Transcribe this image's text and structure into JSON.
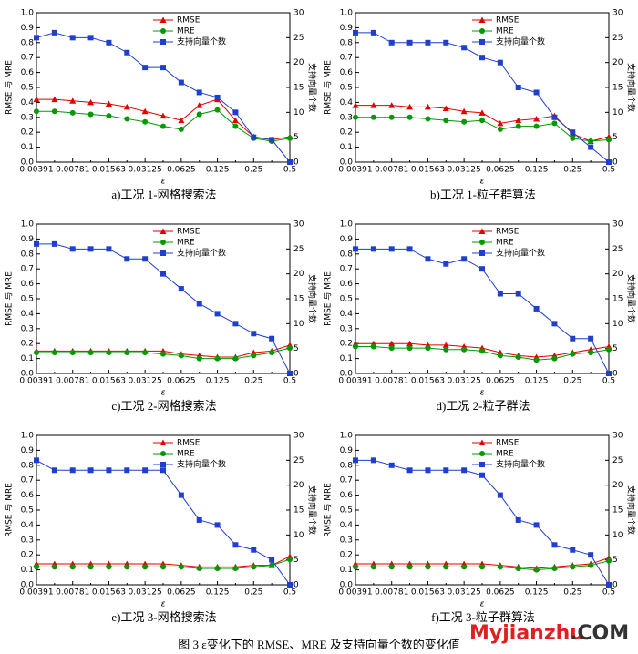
{
  "chart_data": [
    {
      "type": "line",
      "title": "a)工况 1-网格搜索法",
      "xlabel": "ε",
      "ylabel": "RMSE 与 MRE",
      "y2label": "支持向量个数",
      "categories": [
        "0.00391",
        null,
        "0.00781",
        null,
        "0.01563",
        null,
        "0.03125",
        null,
        "0.0625",
        null,
        "0.125",
        null,
        "0.25",
        null,
        "0.5"
      ],
      "ylim": [
        0,
        1
      ],
      "yticks": [
        {
          "value": 0,
          "label": "0.0"
        },
        0.1,
        0.2,
        0.3,
        0.4,
        0.5,
        0.6,
        0.7,
        0.8,
        0.9,
        {
          "value": 1,
          "label": "1.0"
        }
      ],
      "y2lim": [
        0,
        30
      ],
      "y2ticks": [
        0,
        5,
        10,
        15,
        20,
        25,
        30
      ],
      "series": [
        {
          "name": "RMSE",
          "color": "#e00000",
          "marker": "triangle",
          "values": [
            0.42,
            0.42,
            0.41,
            0.4,
            0.39,
            0.37,
            0.34,
            0.31,
            0.28,
            0.38,
            0.42,
            0.28,
            0.17,
            0.15,
            0.17
          ]
        },
        {
          "name": "MRE",
          "color": "#009a00",
          "marker": "circle",
          "values": [
            0.34,
            0.34,
            0.33,
            0.32,
            0.31,
            0.29,
            0.27,
            0.24,
            0.22,
            0.32,
            0.35,
            0.24,
            0.16,
            0.14,
            0.16
          ]
        },
        {
          "name": "支持向量个数",
          "color": "#1f3fcf",
          "marker": "square",
          "axis": "y2",
          "values": [
            25,
            26,
            25,
            25,
            24,
            22,
            19,
            19,
            16,
            14,
            13,
            10,
            5,
            4.5,
            0
          ]
        }
      ]
    },
    {
      "type": "line",
      "title": "b)工况 1-粒子群算法",
      "xlabel": "ε",
      "ylabel": "RMSE 与 MRE",
      "y2label": "支持向量个数",
      "categories": [
        "0.00391",
        null,
        "0.00781",
        null,
        "0.01563",
        null,
        "0.03125",
        null,
        "0.0625",
        null,
        "0.125",
        null,
        "0.25",
        null,
        "0.5"
      ],
      "ylim": [
        0,
        1
      ],
      "yticks": [
        {
          "value": 0,
          "label": "0.0"
        },
        0.1,
        0.2,
        0.3,
        0.4,
        0.5,
        0.6,
        0.7,
        0.8,
        0.9,
        {
          "value": 1,
          "label": "1.0"
        }
      ],
      "y2lim": [
        0,
        30
      ],
      "y2ticks": [
        0,
        5,
        10,
        15,
        20,
        25,
        30
      ],
      "series": [
        {
          "name": "RMSE",
          "color": "#e00000",
          "marker": "triangle",
          "values": [
            0.38,
            0.38,
            0.38,
            0.37,
            0.37,
            0.36,
            0.34,
            0.33,
            0.26,
            0.28,
            0.29,
            0.31,
            0.19,
            0.14,
            0.17
          ]
        },
        {
          "name": "MRE",
          "color": "#009a00",
          "marker": "circle",
          "values": [
            0.3,
            0.3,
            0.3,
            0.3,
            0.29,
            0.28,
            0.27,
            0.28,
            0.22,
            0.24,
            0.24,
            0.26,
            0.16,
            0.14,
            0.15
          ]
        },
        {
          "name": "支持向量个数",
          "color": "#1f3fcf",
          "marker": "square",
          "axis": "y2",
          "values": [
            26,
            26,
            24,
            24,
            24,
            24,
            23,
            21,
            20,
            15,
            14,
            9,
            6,
            3,
            0
          ]
        }
      ]
    },
    {
      "type": "line",
      "title": "c)工况 2-网格搜索法",
      "xlabel": "ε",
      "ylabel": "RMSE 与 MRE",
      "y2label": "支持向量个数",
      "categories": [
        "0.00391",
        null,
        "0.00781",
        null,
        "0.01563",
        null,
        "0.03125",
        null,
        "0.0625",
        null,
        "0.125",
        null,
        "0.25",
        null,
        "0.5"
      ],
      "ylim": [
        0,
        1
      ],
      "yticks": [
        {
          "value": 0,
          "label": "0.0"
        },
        0.1,
        0.2,
        0.3,
        0.4,
        0.5,
        0.6,
        0.7,
        0.8,
        0.9,
        {
          "value": 1,
          "label": "1.0"
        }
      ],
      "y2lim": [
        0,
        30
      ],
      "y2ticks": [
        0,
        5,
        10,
        15,
        20,
        25,
        30
      ],
      "series": [
        {
          "name": "RMSE",
          "color": "#e00000",
          "marker": "triangle",
          "values": [
            0.15,
            0.15,
            0.15,
            0.15,
            0.15,
            0.15,
            0.15,
            0.15,
            0.13,
            0.12,
            0.11,
            0.11,
            0.14,
            0.15,
            0.19
          ]
        },
        {
          "name": "MRE",
          "color": "#009a00",
          "marker": "circle",
          "values": [
            0.14,
            0.14,
            0.14,
            0.14,
            0.14,
            0.14,
            0.14,
            0.13,
            0.12,
            0.1,
            0.1,
            0.1,
            0.12,
            0.14,
            0.17
          ]
        },
        {
          "name": "支持向量个数",
          "color": "#1f3fcf",
          "marker": "square",
          "axis": "y2",
          "values": [
            26,
            26,
            25,
            25,
            25,
            23,
            23,
            20,
            17,
            14,
            12,
            10,
            8,
            7,
            0
          ]
        }
      ]
    },
    {
      "type": "line",
      "title": "d)工况 2-粒子群法",
      "xlabel": "ε",
      "ylabel": "RMSE 与 MRE",
      "y2label": "支持向量个数",
      "categories": [
        "0.00391",
        null,
        "0.00781",
        null,
        "0.01563",
        null,
        "0.03125",
        null,
        "0.0625",
        null,
        "0.125",
        null,
        "0.25",
        null,
        "0.5"
      ],
      "ylim": [
        0,
        1
      ],
      "yticks": [
        {
          "value": 0,
          "label": "0.0"
        },
        0.1,
        0.2,
        0.3,
        0.4,
        0.5,
        0.6,
        0.7,
        0.8,
        0.9,
        {
          "value": 1,
          "label": "1.0"
        }
      ],
      "y2lim": [
        0,
        30
      ],
      "y2ticks": [
        0,
        5,
        10,
        15,
        20,
        25,
        30
      ],
      "series": [
        {
          "name": "RMSE",
          "color": "#e00000",
          "marker": "triangle",
          "values": [
            0.2,
            0.2,
            0.2,
            0.2,
            0.19,
            0.19,
            0.18,
            0.17,
            0.14,
            0.12,
            0.11,
            0.12,
            0.14,
            0.16,
            0.18
          ]
        },
        {
          "name": "MRE",
          "color": "#009a00",
          "marker": "circle",
          "values": [
            0.18,
            0.18,
            0.17,
            0.17,
            0.17,
            0.16,
            0.16,
            0.15,
            0.12,
            0.11,
            0.09,
            0.1,
            0.13,
            0.14,
            0.16
          ]
        },
        {
          "name": "支持向量个数",
          "color": "#1f3fcf",
          "marker": "square",
          "axis": "y2",
          "values": [
            25,
            25,
            25,
            25,
            23,
            22,
            23,
            21,
            16,
            16,
            13,
            10,
            7,
            7,
            0
          ]
        }
      ]
    },
    {
      "type": "line",
      "title": "e)工况 3-网格搜索法",
      "xlabel": "ε",
      "ylabel": "RMSE 与 MRE",
      "y2label": "支持向量个数",
      "categories": [
        "0.00391",
        null,
        "0.00781",
        null,
        "0.01563",
        null,
        "0.03125",
        null,
        "0.0625",
        null,
        "0.125",
        null,
        "0.25",
        null,
        "0.5"
      ],
      "ylim": [
        0,
        1
      ],
      "yticks": [
        {
          "value": 0,
          "label": "0.0"
        },
        0.1,
        0.2,
        0.3,
        0.4,
        0.5,
        0.6,
        0.7,
        0.8,
        0.9,
        {
          "value": 1,
          "label": "1.0"
        }
      ],
      "y2lim": [
        0,
        30
      ],
      "y2ticks": [
        0,
        5,
        10,
        15,
        20,
        25,
        30
      ],
      "series": [
        {
          "name": "RMSE",
          "color": "#e00000",
          "marker": "triangle",
          "values": [
            0.14,
            0.14,
            0.14,
            0.14,
            0.14,
            0.14,
            0.14,
            0.14,
            0.13,
            0.12,
            0.12,
            0.12,
            0.13,
            0.13,
            0.19
          ]
        },
        {
          "name": "MRE",
          "color": "#009a00",
          "marker": "circle",
          "values": [
            0.12,
            0.12,
            0.12,
            0.12,
            0.12,
            0.12,
            0.12,
            0.12,
            0.12,
            0.11,
            0.11,
            0.11,
            0.12,
            0.13,
            0.17
          ]
        },
        {
          "name": "支持向量个数",
          "color": "#1f3fcf",
          "marker": "square",
          "axis": "y2",
          "values": [
            25,
            23,
            23,
            23,
            23,
            23,
            23,
            23,
            18,
            13,
            12,
            8,
            7,
            5,
            0
          ]
        }
      ]
    },
    {
      "type": "line",
      "title": "f)工况 3-粒子群算法",
      "xlabel": "ε",
      "ylabel": "RMSE 与 MRE",
      "y2label": "支持向量个数",
      "categories": [
        "0.00391",
        null,
        "0.00781",
        null,
        "0.01563",
        null,
        "0.03125",
        null,
        "0.0625",
        null,
        "0.125",
        null,
        "0.25",
        null,
        "0.5"
      ],
      "ylim": [
        0,
        1
      ],
      "yticks": [
        {
          "value": 0,
          "label": "0.0"
        },
        0.1,
        0.2,
        0.3,
        0.4,
        0.5,
        0.6,
        0.7,
        0.8,
        0.9,
        {
          "value": 1,
          "label": "1.0"
        }
      ],
      "y2lim": [
        0,
        30
      ],
      "y2ticks": [
        0,
        5,
        10,
        15,
        20,
        25,
        30
      ],
      "series": [
        {
          "name": "RMSE",
          "color": "#e00000",
          "marker": "triangle",
          "values": [
            0.14,
            0.14,
            0.14,
            0.14,
            0.14,
            0.14,
            0.14,
            0.14,
            0.13,
            0.12,
            0.11,
            0.12,
            0.13,
            0.14,
            0.18
          ]
        },
        {
          "name": "MRE",
          "color": "#009a00",
          "marker": "circle",
          "values": [
            0.12,
            0.12,
            0.12,
            0.12,
            0.12,
            0.12,
            0.12,
            0.12,
            0.12,
            0.11,
            0.1,
            0.11,
            0.12,
            0.13,
            0.16
          ]
        },
        {
          "name": "支持向量个数",
          "color": "#1f3fcf",
          "marker": "square",
          "axis": "y2",
          "values": [
            25,
            25,
            24,
            23,
            23,
            23,
            23,
            22,
            18,
            13,
            12,
            8,
            7,
            6,
            0
          ]
        }
      ]
    }
  ],
  "caption": "图 3 ε变化下的 RMSE、MRE 及支持向量个数的变化值",
  "watermark": [
    "Myjianzhu",
    ".COM"
  ]
}
